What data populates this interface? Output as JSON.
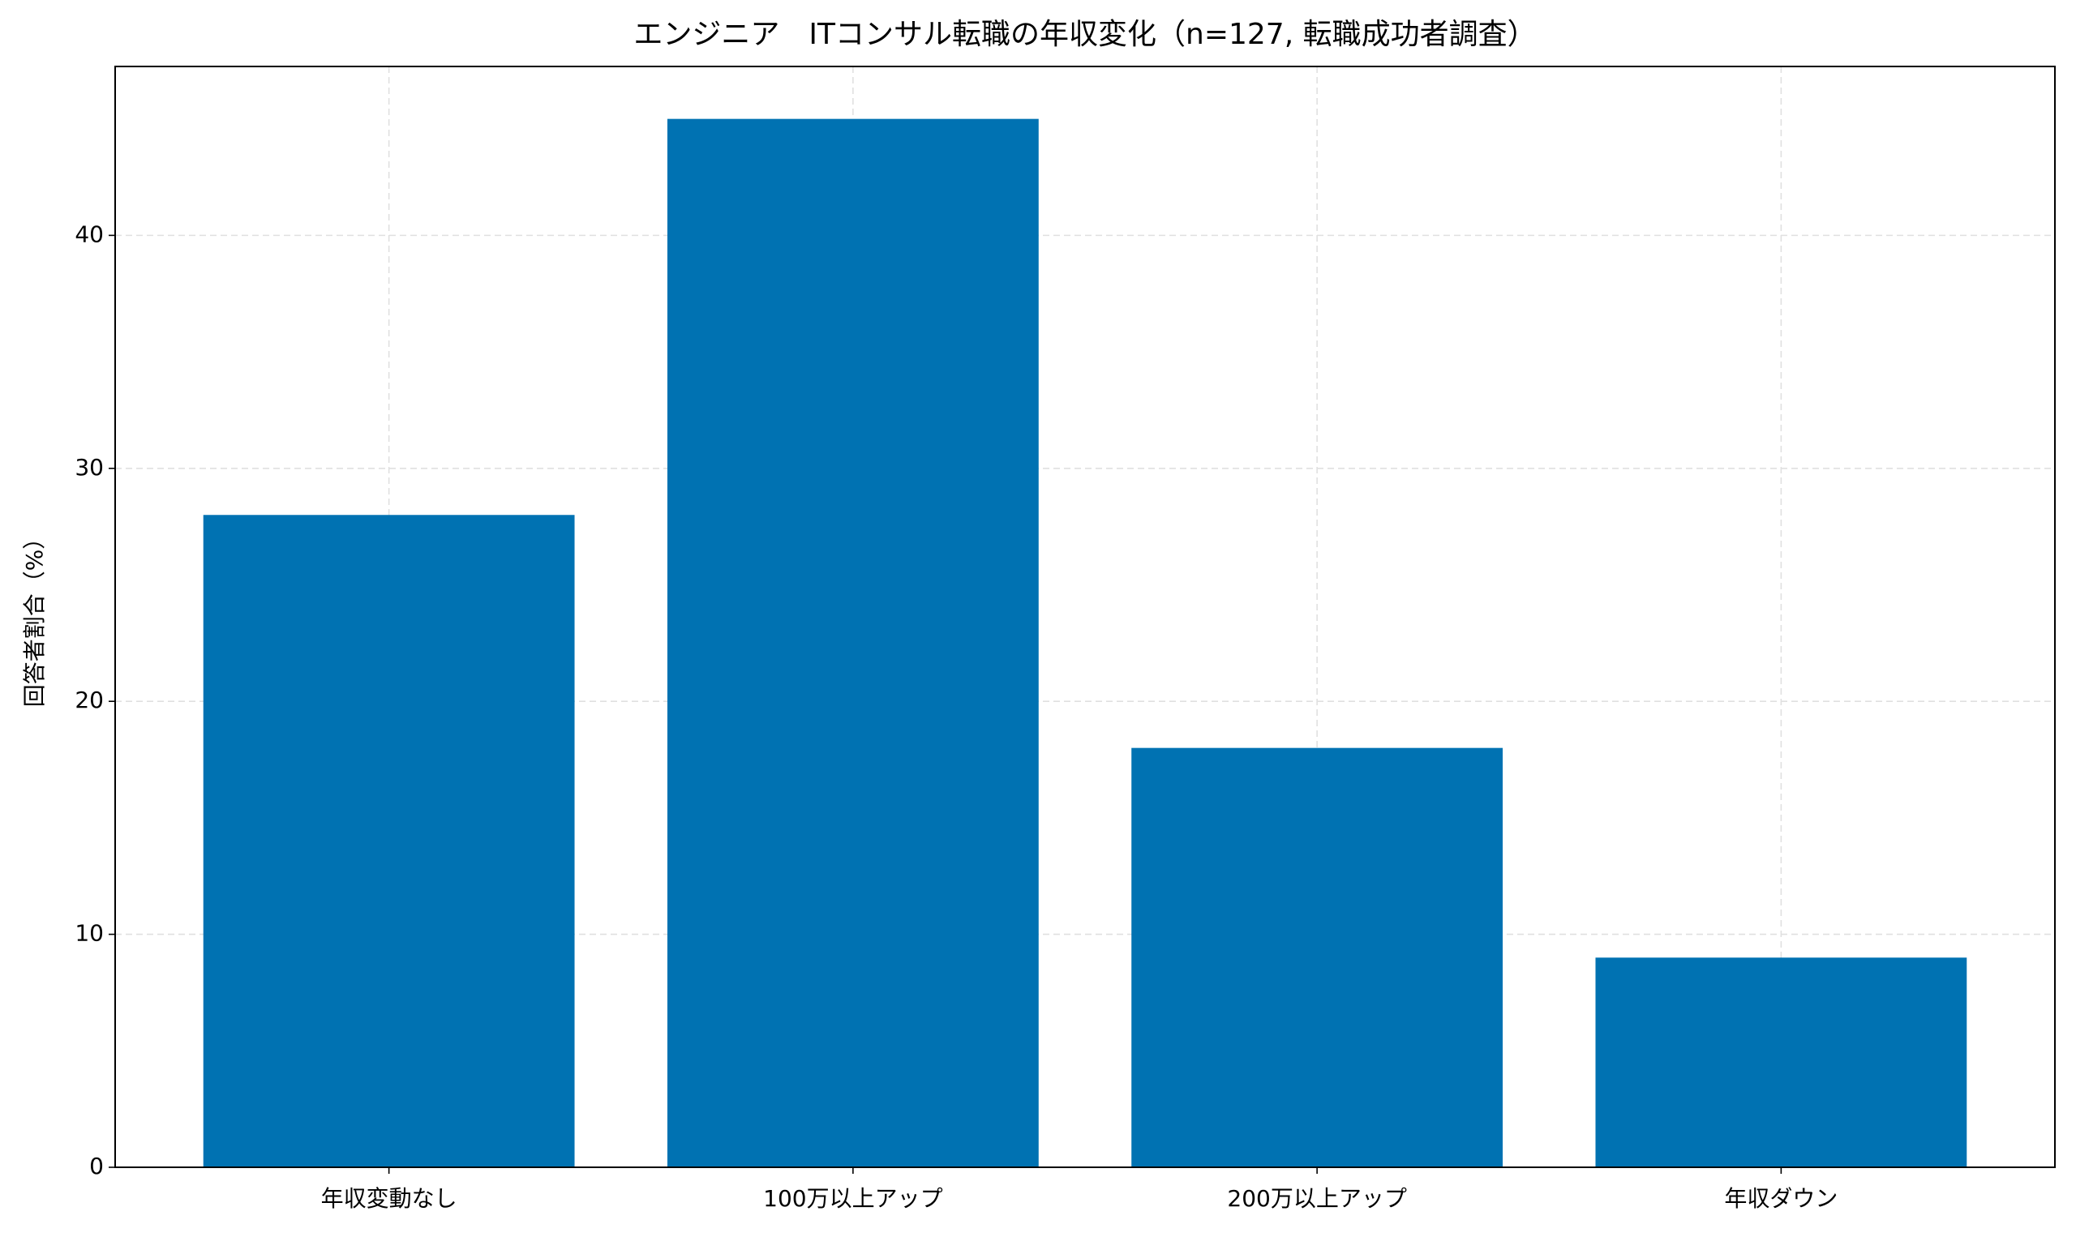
{
  "chart_data": {
    "type": "bar",
    "title": "エンジニア　ITコンサル転職の年収変化（n=127, 転職成功者調査）",
    "y_label": "回答者割合（%）",
    "categories": [
      "年収変動なし",
      "100万以上アップ",
      "200万以上アップ",
      "年収ダウン"
    ],
    "values": [
      28,
      45,
      18,
      9
    ],
    "color": "#0072b2",
    "ylim": [
      0,
      47.25
    ],
    "yticks": [
      0,
      10,
      20,
      30,
      40
    ],
    "grid": true
  }
}
